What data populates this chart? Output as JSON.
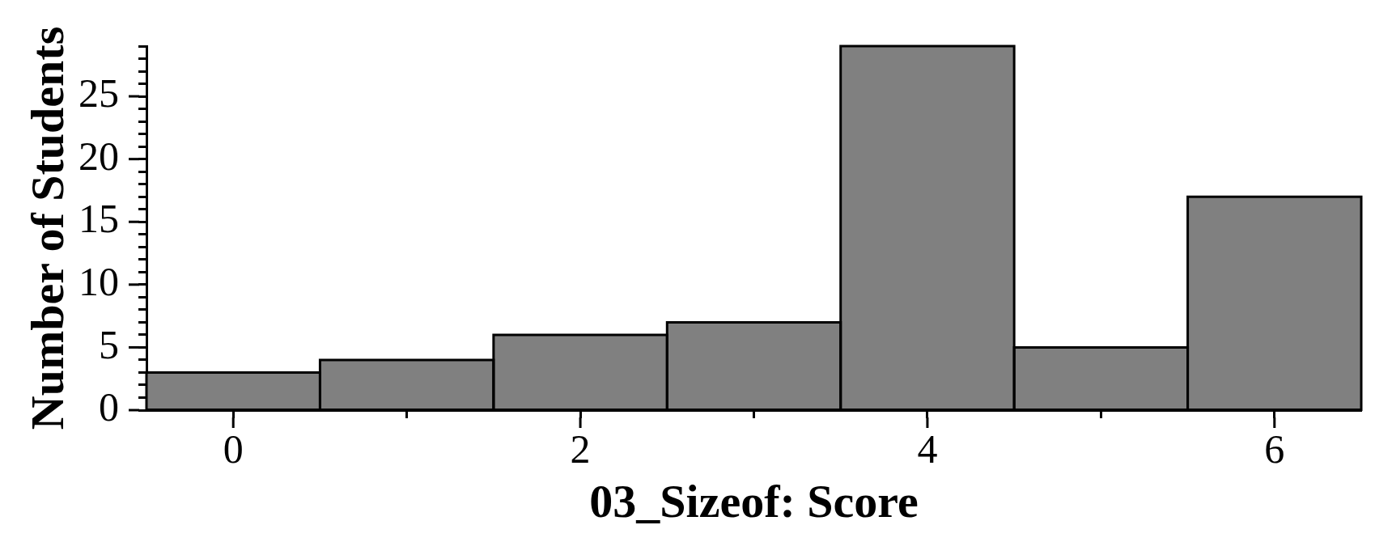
{
  "chart_data": {
    "type": "histogram",
    "xlabel": "03_Sizeof: Score",
    "ylabel": "Number of Students",
    "bins": [
      -0.5,
      0.5,
      1.5,
      2.5,
      3.5,
      4.5,
      5.5,
      6.5
    ],
    "values": [
      3,
      4,
      6,
      7,
      29,
      5,
      17
    ],
    "color": "#808080",
    "xlim": [
      -0.5,
      6.5
    ],
    "xticks": [
      0,
      {
        "value": 1,
        "label": null
      },
      2,
      {
        "value": 3,
        "label": null
      },
      4,
      {
        "value": 5,
        "label": null
      },
      6
    ],
    "ylim": [
      0,
      29
    ],
    "yticks": [
      0,
      {
        "value": 1,
        "label": null
      },
      {
        "value": 2,
        "label": null
      },
      {
        "value": 3,
        "label": null
      },
      {
        "value": 4,
        "label": null
      },
      5,
      {
        "value": 6,
        "label": null
      },
      {
        "value": 7,
        "label": null
      },
      {
        "value": 8,
        "label": null
      },
      {
        "value": 9,
        "label": null
      },
      10,
      {
        "value": 11,
        "label": null
      },
      {
        "value": 12,
        "label": null
      },
      {
        "value": 13,
        "label": null
      },
      {
        "value": 14,
        "label": null
      },
      15,
      {
        "value": 16,
        "label": null
      },
      {
        "value": 17,
        "label": null
      },
      {
        "value": 18,
        "label": null
      },
      {
        "value": 19,
        "label": null
      },
      20,
      {
        "value": 21,
        "label": null
      },
      {
        "value": 22,
        "label": null
      },
      {
        "value": 23,
        "label": null
      },
      {
        "value": 24,
        "label": null
      },
      25,
      {
        "value": 26,
        "label": null
      },
      {
        "value": 27,
        "label": null
      },
      {
        "value": 28,
        "label": null
      },
      {
        "value": 29,
        "label": null
      }
    ]
  }
}
